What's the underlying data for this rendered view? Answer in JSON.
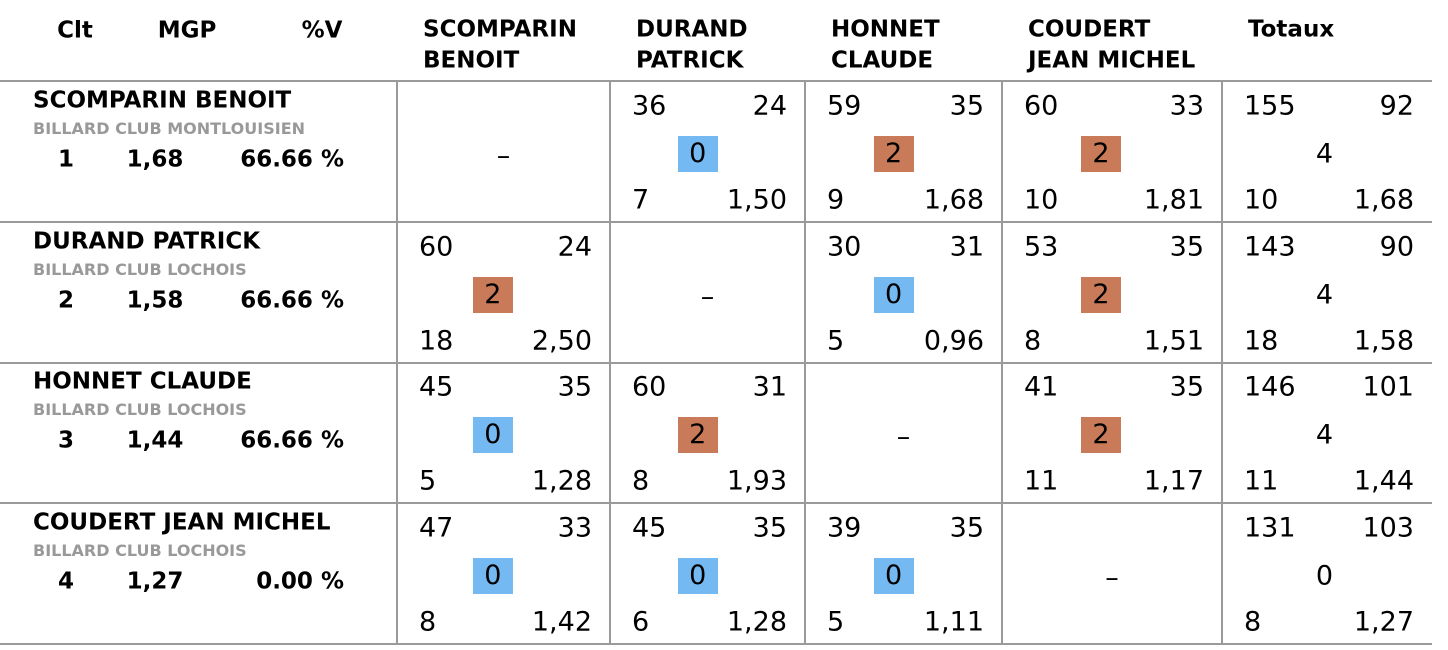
{
  "header": {
    "rank": "Clt",
    "mgp": "MGP",
    "pct": "%V",
    "columns": [
      {
        "lines": [
          "SCOMPARIN",
          "BENOIT"
        ]
      },
      {
        "lines": [
          "DURAND",
          "PATRICK"
        ]
      },
      {
        "lines": [
          "HONNET",
          "CLAUDE"
        ]
      },
      {
        "lines": [
          "COUDERT",
          "JEAN MICHEL"
        ]
      },
      {
        "lines": [
          "Totaux"
        ]
      }
    ]
  },
  "badge_colors": {
    "0": "#74b9f2",
    "2": "#c97b59"
  },
  "rows": [
    {
      "name": "SCOMPARIN BENOIT",
      "club": "BILLARD CLUB MONTLOUISIEN",
      "rank": 1,
      "mgp": "1,68",
      "pct": "66.66 %",
      "cells": [
        {
          "dash": "–"
        },
        {
          "tl": 36,
          "tr": 24,
          "mid": 0,
          "bl": 7,
          "br": "1,50"
        },
        {
          "tl": 59,
          "tr": 35,
          "mid": 2,
          "bl": 9,
          "br": "1,68"
        },
        {
          "tl": 60,
          "tr": 33,
          "mid": 2,
          "bl": 10,
          "br": "1,81"
        },
        {
          "tl": 155,
          "tr": 92,
          "mid": 4,
          "bl": 10,
          "br": "1,68"
        }
      ]
    },
    {
      "name": "DURAND PATRICK",
      "club": "BILLARD CLUB LOCHOIS",
      "rank": 2,
      "mgp": "1,58",
      "pct": "66.66 %",
      "cells": [
        {
          "tl": 60,
          "tr": 24,
          "mid": 2,
          "bl": 18,
          "br": "2,50"
        },
        {
          "dash": "–"
        },
        {
          "tl": 30,
          "tr": 31,
          "mid": 0,
          "bl": 5,
          "br": "0,96"
        },
        {
          "tl": 53,
          "tr": 35,
          "mid": 2,
          "bl": 8,
          "br": "1,51"
        },
        {
          "tl": 143,
          "tr": 90,
          "mid": 4,
          "bl": 18,
          "br": "1,58"
        }
      ]
    },
    {
      "name": "HONNET CLAUDE",
      "club": "BILLARD CLUB LOCHOIS",
      "rank": 3,
      "mgp": "1,44",
      "pct": "66.66 %",
      "cells": [
        {
          "tl": 45,
          "tr": 35,
          "mid": 0,
          "bl": 5,
          "br": "1,28"
        },
        {
          "tl": 60,
          "tr": 31,
          "mid": 2,
          "bl": 8,
          "br": "1,93"
        },
        {
          "dash": "–"
        },
        {
          "tl": 41,
          "tr": 35,
          "mid": 2,
          "bl": 11,
          "br": "1,17"
        },
        {
          "tl": 146,
          "tr": 101,
          "mid": 4,
          "bl": 11,
          "br": "1,44"
        }
      ]
    },
    {
      "name": "COUDERT JEAN MICHEL",
      "club": "BILLARD CLUB LOCHOIS",
      "rank": 4,
      "mgp": "1,27",
      "pct": "0.00 %",
      "cells": [
        {
          "tl": 47,
          "tr": 33,
          "mid": 0,
          "bl": 8,
          "br": "1,42"
        },
        {
          "tl": 45,
          "tr": 35,
          "mid": 0,
          "bl": 6,
          "br": "1,28"
        },
        {
          "tl": 39,
          "tr": 35,
          "mid": 0,
          "bl": 5,
          "br": "1,11"
        },
        {
          "dash": "–"
        },
        {
          "tl": 131,
          "tr": 103,
          "mid": 0,
          "bl": 8,
          "br": "1,27"
        }
      ]
    }
  ]
}
